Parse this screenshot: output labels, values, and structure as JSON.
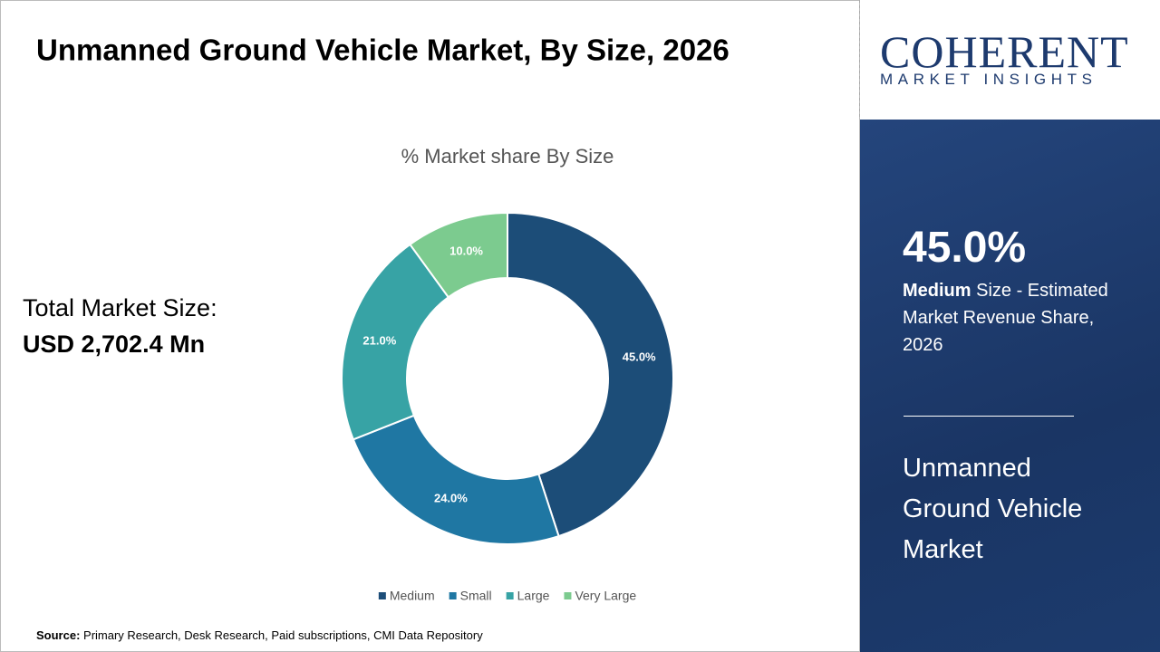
{
  "title": "Unmanned Ground Vehicle Market, By Size, 2026",
  "total_market": {
    "label": "Total Market Size:",
    "value": "USD 2,702.4 Mn"
  },
  "logo": {
    "name": "COHERENT",
    "tagline": "MARKET INSIGHTS"
  },
  "highlight": {
    "value": "45.0%",
    "bold": "Medium",
    "text": " Size - Estimated Market Revenue Share, 2026"
  },
  "market_name": "Unmanned Ground Vehicle Market",
  "source": {
    "label": "Source:",
    "text": " Primary Research, Desk Research, Paid subscriptions, CMI Data Repository"
  },
  "chart_data": {
    "type": "pie",
    "donut": true,
    "title": "% Market share By Size",
    "categories": [
      "Medium",
      "Small",
      "Large",
      "Very Large"
    ],
    "values": [
      45,
      24,
      21,
      10
    ],
    "value_labels": [
      "45.0%",
      "24.0%",
      "21.0%",
      "10.0%"
    ],
    "colors": [
      "#1c4d78",
      "#1f77a3",
      "#37a3a5",
      "#7ccb8f"
    ],
    "legend": "bottom"
  }
}
